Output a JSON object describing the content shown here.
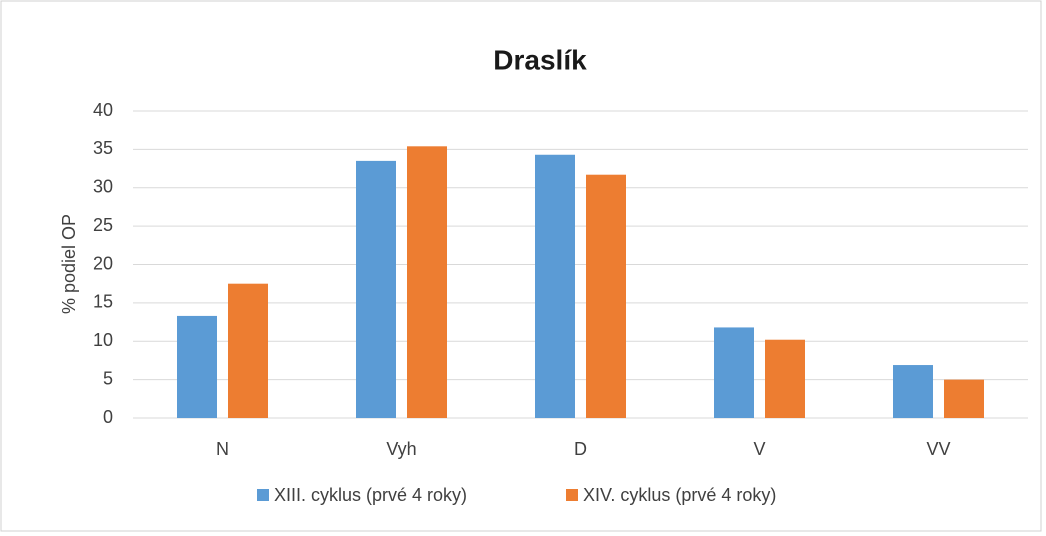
{
  "chart_data": {
    "type": "bar",
    "title": "Draslík",
    "y_label": "% podiel OP",
    "categories": [
      "N",
      "Vyh",
      "D",
      "V",
      "VV"
    ],
    "series": [
      {
        "name": "XIII. cyklus (prvé 4 roky)",
        "color": "#5b9bd5",
        "values": [
          13.3,
          33.5,
          34.3,
          11.8,
          6.9
        ]
      },
      {
        "name": "XIV. cyklus (prvé 4 roky)",
        "color": "#ed7d31",
        "values": [
          17.5,
          35.4,
          31.7,
          10.2,
          5.0
        ]
      }
    ],
    "ylim": [
      0,
      40
    ],
    "yticks": [
      0,
      5,
      10,
      15,
      20,
      25,
      30,
      35,
      40
    ],
    "grid": true,
    "legend": "bottom"
  }
}
